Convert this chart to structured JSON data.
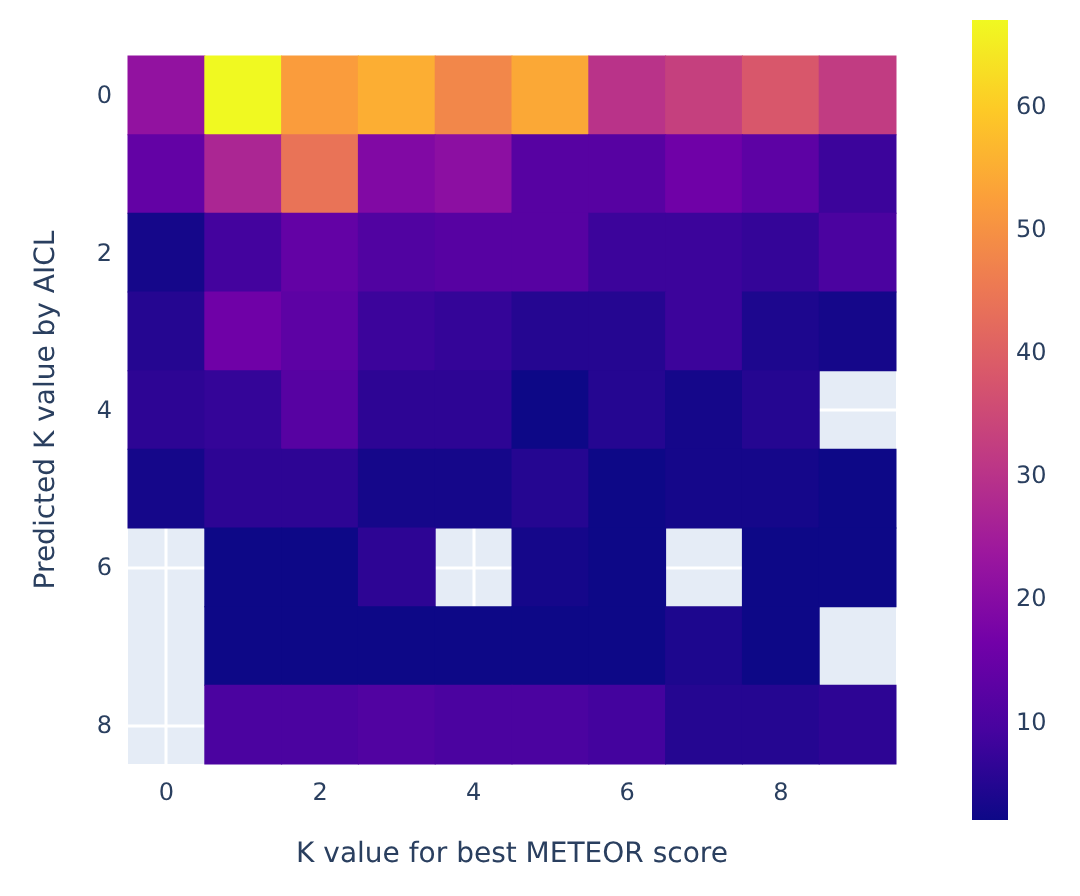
{
  "chart_data": {
    "type": "heatmap",
    "xlabel": "K value for best METEOR score",
    "ylabel": "Predicted K value by AICL",
    "categories": [
      "0",
      null,
      "2",
      null,
      "4",
      null,
      "6",
      null,
      "8",
      null
    ],
    "y_categories": [
      "0",
      null,
      "2",
      null,
      "4",
      null,
      "6",
      null,
      "8"
    ],
    "cells": [
      [
        22,
        67,
        52,
        55,
        48,
        54,
        30,
        33,
        38,
        32
      ],
      [
        14,
        27,
        44,
        19,
        21,
        12,
        12,
        16,
        13,
        8
      ],
      [
        3,
        9,
        14,
        11,
        12,
        12,
        8,
        8,
        7,
        10
      ],
      [
        5,
        16,
        13,
        8,
        7,
        5,
        5,
        8,
        4,
        3
      ],
      [
        6,
        7,
        12,
        6,
        6,
        2,
        5,
        3,
        5,
        null
      ],
      [
        3,
        6,
        6,
        3,
        3,
        5,
        2,
        3,
        3,
        2
      ],
      [
        null,
        2,
        2,
        6,
        null,
        3,
        2,
        null,
        2,
        2
      ],
      [
        null,
        2,
        2,
        2,
        2,
        2,
        2,
        4,
        2,
        null
      ],
      [
        null,
        10,
        10,
        11,
        10,
        10,
        9,
        5,
        5,
        6
      ]
    ],
    "clim": [
      2,
      67
    ],
    "cticks": [
      10,
      20,
      30,
      40,
      50,
      60
    ],
    "grid": true
  }
}
